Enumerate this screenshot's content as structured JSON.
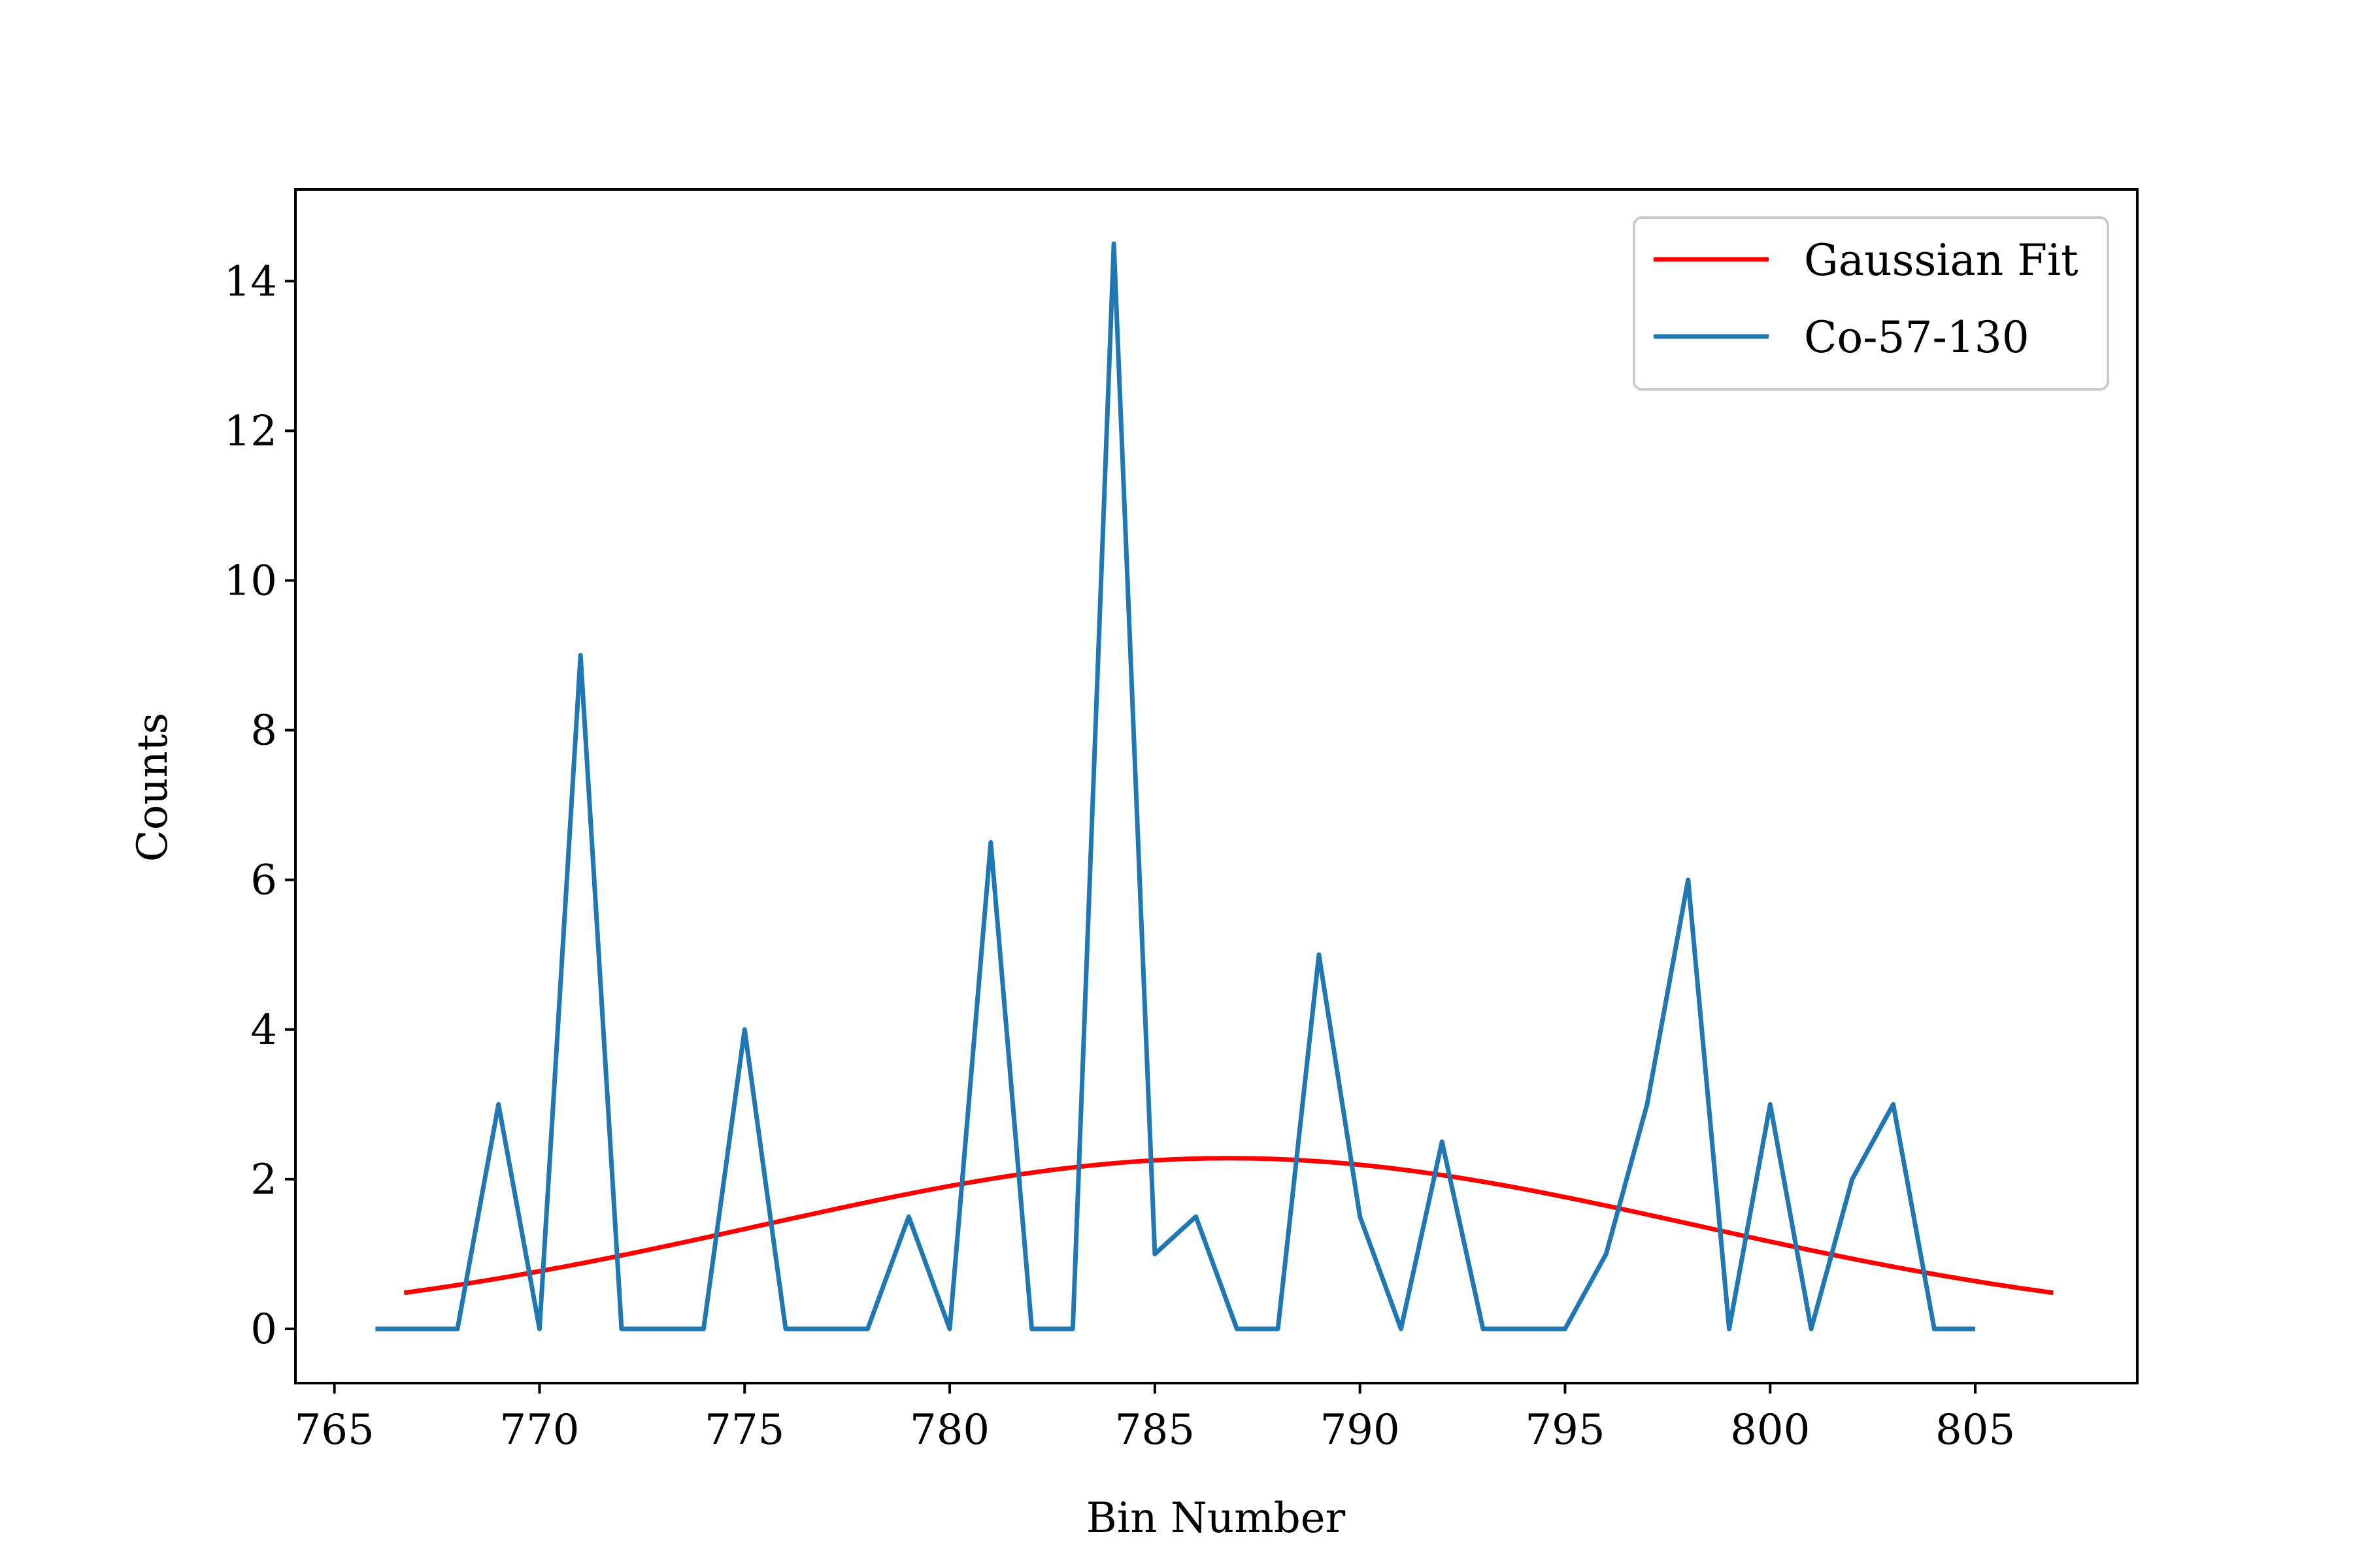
{
  "chart_data": {
    "type": "line",
    "title": "",
    "xlabel": "Bin Number",
    "ylabel": "Counts",
    "xlim": [
      764.05,
      808.95
    ],
    "ylim": [
      -0.725,
      15.225
    ],
    "xticks": [
      765,
      770,
      775,
      780,
      785,
      790,
      795,
      800,
      805
    ],
    "yticks": [
      0,
      2,
      4,
      6,
      8,
      10,
      12,
      14
    ],
    "grid": false,
    "legend_position": "top-right",
    "series": [
      {
        "name": "Gaussian Fit",
        "color": "#ff0000",
        "kind": "curve",
        "amplitude": 2.28,
        "center": 786.8,
        "sigma": 11.4,
        "x_range": [
          766.7,
          806.9
        ]
      },
      {
        "name": "Co-57-130",
        "color": "#1f77b4",
        "x": [
          766,
          767,
          768,
          769,
          770,
          771,
          772,
          773,
          774,
          775,
          776,
          777,
          778,
          779,
          780,
          781,
          782,
          783,
          784,
          785,
          786,
          787,
          788,
          789,
          790,
          791,
          792,
          793,
          794,
          795,
          796,
          797,
          798,
          799,
          800,
          801,
          802,
          803,
          804,
          805
        ],
        "values": [
          0,
          0,
          0,
          3,
          0,
          9,
          0,
          0,
          0,
          4,
          0,
          0,
          0,
          1.5,
          0,
          6.5,
          0,
          0,
          14.5,
          1,
          1.5,
          0,
          0,
          5,
          1.5,
          0,
          2.5,
          0,
          0,
          0,
          1,
          3,
          6,
          0,
          3,
          0,
          2,
          3,
          0,
          0
        ]
      }
    ]
  }
}
